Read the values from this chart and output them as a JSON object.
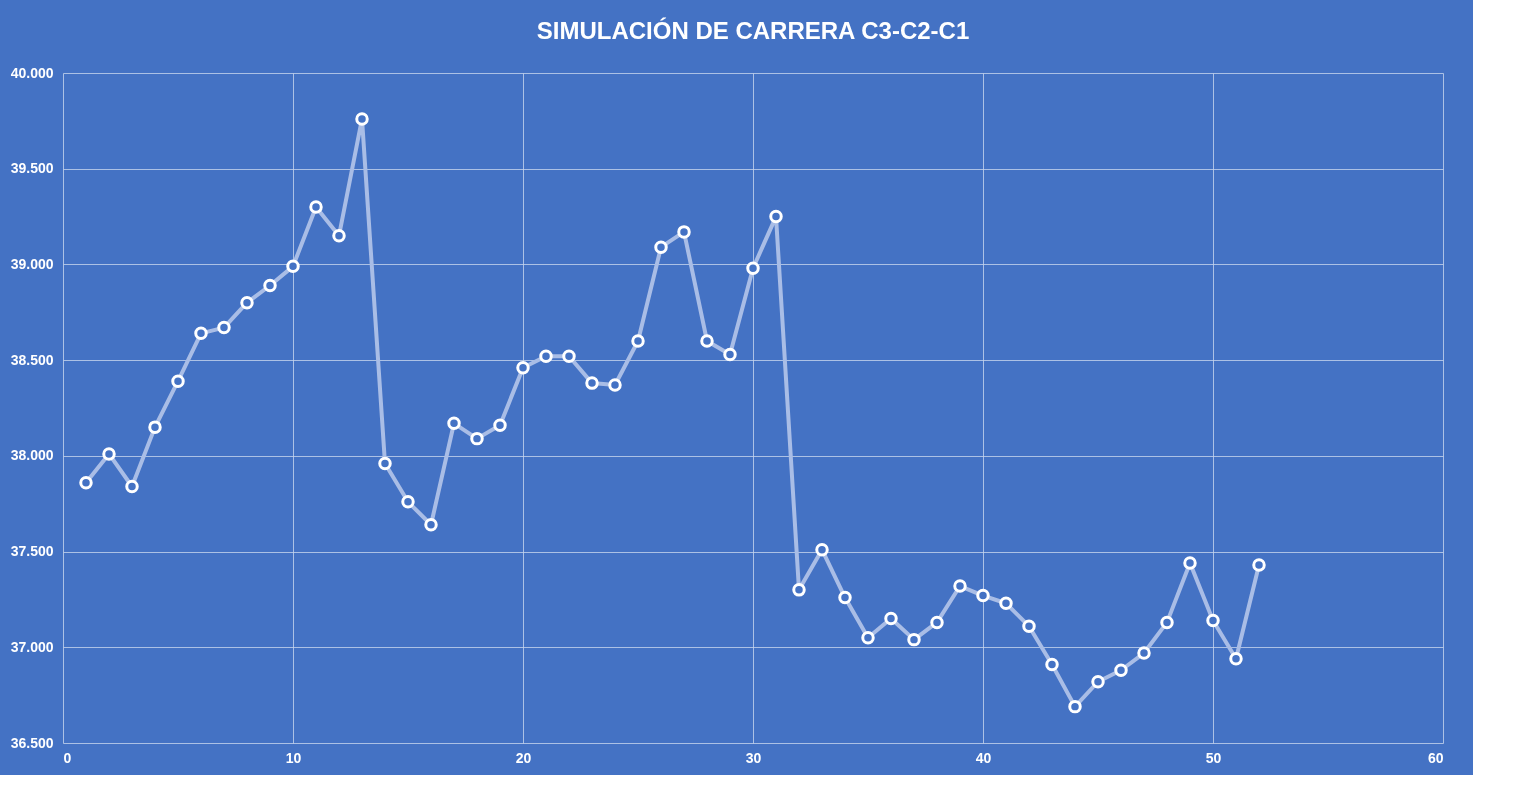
{
  "chart_data": {
    "type": "line",
    "title": "SIMULACIÓN DE CARRERA C3-C2-C1",
    "x": [
      1,
      2,
      3,
      4,
      5,
      6,
      7,
      8,
      9,
      10,
      11,
      12,
      13,
      14,
      15,
      16,
      17,
      18,
      19,
      20,
      21,
      22,
      23,
      24,
      25,
      26,
      27,
      28,
      29,
      30,
      31,
      32,
      33,
      34,
      35,
      36,
      37,
      38,
      39,
      40,
      41,
      42,
      43,
      44,
      45,
      46,
      47,
      48,
      49,
      50,
      51,
      52
    ],
    "series": [
      {
        "color": "#a9bde6",
        "values": [
          37860,
          38010,
          37840,
          38150,
          38390,
          38640,
          38670,
          38800,
          38890,
          38990,
          39300,
          39150,
          39760,
          37960,
          37760,
          37640,
          38170,
          38090,
          38160,
          38460,
          38520,
          38520,
          38380,
          38370,
          38600,
          39090,
          39170,
          38600,
          38530,
          38980,
          39250,
          37300,
          37510,
          37260,
          37050,
          37150,
          37040,
          37130,
          37320,
          37270,
          37230,
          37110,
          36910,
          36690,
          36820,
          36880,
          36970,
          37130,
          37440,
          37140,
          36940,
          37430
        ]
      }
    ],
    "xlim": [
      0,
      60
    ],
    "xticks": [
      0,
      10,
      20,
      30,
      40,
      50,
      60
    ],
    "ylim": [
      36500,
      40000
    ],
    "yticks": [
      {
        "value": 36500,
        "label": "36.500"
      },
      {
        "value": 37000,
        "label": "37.000"
      },
      {
        "value": 37500,
        "label": "37.500"
      },
      {
        "value": 38000,
        "label": "38.000"
      },
      {
        "value": 38500,
        "label": "38.500"
      },
      {
        "value": 39000,
        "label": "39.000"
      },
      {
        "value": 39500,
        "label": "39.500"
      },
      {
        "value": 40000,
        "label": "40.000"
      }
    ],
    "grid": true,
    "marker": "circle",
    "line_style": "solid"
  }
}
